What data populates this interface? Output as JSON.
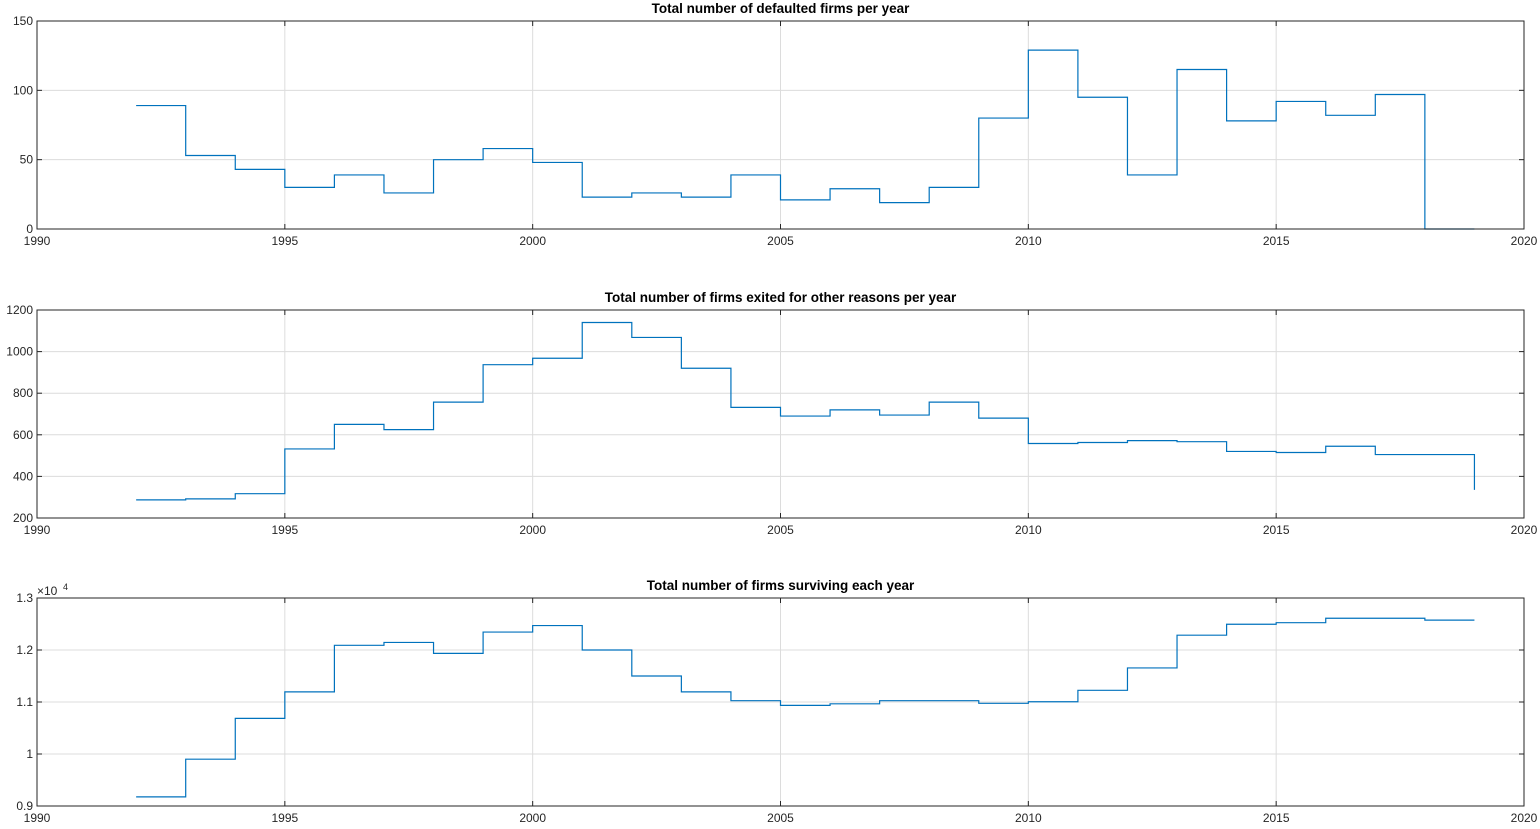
{
  "chart_data": [
    {
      "type": "line",
      "style": "stairs",
      "title": "Total number of defaulted firms per year",
      "xlim": [
        1990,
        2020
      ],
      "ylim": [
        0,
        150
      ],
      "xticks": [
        1990,
        1995,
        2000,
        2005,
        2010,
        2015,
        2020
      ],
      "yticks": [
        0,
        50,
        100,
        150
      ],
      "grid": true,
      "color": "#0072BD",
      "x": [
        1992,
        1993,
        1994,
        1995,
        1996,
        1997,
        1998,
        1999,
        2000,
        2001,
        2002,
        2003,
        2004,
        2005,
        2006,
        2007,
        2008,
        2009,
        2010,
        2011,
        2012,
        2013,
        2014,
        2015,
        2016,
        2017,
        2018,
        2019
      ],
      "y": [
        89,
        53,
        43,
        30,
        39,
        26,
        50,
        58,
        48,
        23,
        26,
        23,
        39,
        21,
        29,
        19,
        30,
        80,
        129,
        95,
        39,
        115,
        78,
        92,
        82,
        97,
        0,
        0
      ]
    },
    {
      "type": "line",
      "style": "stairs",
      "title": "Total number of firms exited for other reasons per year",
      "xlim": [
        1990,
        2020
      ],
      "ylim": [
        200,
        1200
      ],
      "xticks": [
        1990,
        1995,
        2000,
        2005,
        2010,
        2015,
        2020
      ],
      "yticks": [
        200,
        400,
        600,
        800,
        1000,
        1200
      ],
      "grid": true,
      "color": "#0072BD",
      "x": [
        1992,
        1993,
        1994,
        1995,
        1996,
        1997,
        1998,
        1999,
        2000,
        2001,
        2002,
        2003,
        2004,
        2005,
        2006,
        2007,
        2008,
        2009,
        2010,
        2011,
        2012,
        2013,
        2014,
        2015,
        2016,
        2017,
        2018,
        2019
      ],
      "y": [
        287,
        292,
        317,
        532,
        650,
        625,
        757,
        937,
        968,
        1140,
        1068,
        920,
        732,
        690,
        720,
        695,
        757,
        680,
        558,
        563,
        572,
        567,
        520,
        515,
        545,
        505,
        505,
        335
      ]
    },
    {
      "type": "line",
      "style": "stairs",
      "title": "Total number of firms surviving each year",
      "xlim": [
        1990,
        2020
      ],
      "ylim": [
        0.9,
        1.3
      ],
      "xticks": [
        1990,
        1995,
        2000,
        2005,
        2010,
        2015,
        2020
      ],
      "yticks": [
        0.9,
        1,
        1.1,
        1.2,
        1.3
      ],
      "ytick_labels": [
        "0.9",
        "1",
        "1.1",
        "1.2",
        "1.3"
      ],
      "y_exponent_base": "×10",
      "y_exponent_power": "4",
      "grid": true,
      "color": "#0072BD",
      "x": [
        1992,
        1993,
        1994,
        1995,
        1996,
        1997,
        1998,
        1999,
        2000,
        2001,
        2002,
        2003,
        2004,
        2005,
        2006,
        2007,
        2008,
        2009,
        2010,
        2011,
        2012,
        2013,
        2014,
        2015,
        2016,
        2017,
        2018,
        2019
      ],
      "y": [
        0.9175,
        0.99,
        1.0685,
        1.1195,
        1.209,
        1.2145,
        1.1935,
        1.2345,
        1.247,
        1.2,
        1.15,
        1.1195,
        1.1025,
        1.0935,
        1.0965,
        1.1025,
        1.1025,
        1.0975,
        1.1005,
        1.1225,
        1.1655,
        1.2285,
        1.2495,
        1.2525,
        1.261,
        1.261,
        1.2575,
        1.2575
      ]
    }
  ]
}
